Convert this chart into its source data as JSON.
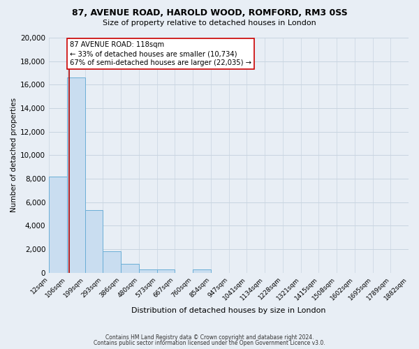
{
  "title_line1": "87, AVENUE ROAD, HAROLD WOOD, ROMFORD, RM3 0SS",
  "title_line2": "Size of property relative to detached houses in London",
  "xlabel": "Distribution of detached houses by size in London",
  "ylabel": "Number of detached properties",
  "bin_labels": [
    "12sqm",
    "106sqm",
    "199sqm",
    "293sqm",
    "386sqm",
    "480sqm",
    "573sqm",
    "667sqm",
    "760sqm",
    "854sqm",
    "947sqm",
    "1041sqm",
    "1134sqm",
    "1228sqm",
    "1321sqm",
    "1415sqm",
    "1508sqm",
    "1602sqm",
    "1695sqm",
    "1789sqm",
    "1882sqm"
  ],
  "bar_values": [
    8200,
    16600,
    5300,
    1850,
    750,
    280,
    280,
    0,
    280,
    0,
    0,
    0,
    0,
    0,
    0,
    0,
    0,
    0,
    0,
    0
  ],
  "bar_color": "#c9ddf0",
  "bar_edge_color": "#6aaed6",
  "ylim": [
    0,
    20000
  ],
  "yticks": [
    0,
    2000,
    4000,
    6000,
    8000,
    10000,
    12000,
    14000,
    16000,
    18000,
    20000
  ],
  "property_line_color": "#aa0000",
  "annotation_title": "87 AVENUE ROAD: 118sqm",
  "annotation_line1": "← 33% of detached houses are smaller (10,734)",
  "annotation_line2": "67% of semi-detached houses are larger (22,035) →",
  "annotation_box_color": "#ffffff",
  "annotation_box_edge": "#cc0000",
  "footer_line1": "Contains HM Land Registry data © Crown copyright and database right 2024.",
  "footer_line2": "Contains public sector information licensed under the Open Government Licence v3.0.",
  "background_color": "#e8eef5",
  "grid_color": "#c8d4e0"
}
